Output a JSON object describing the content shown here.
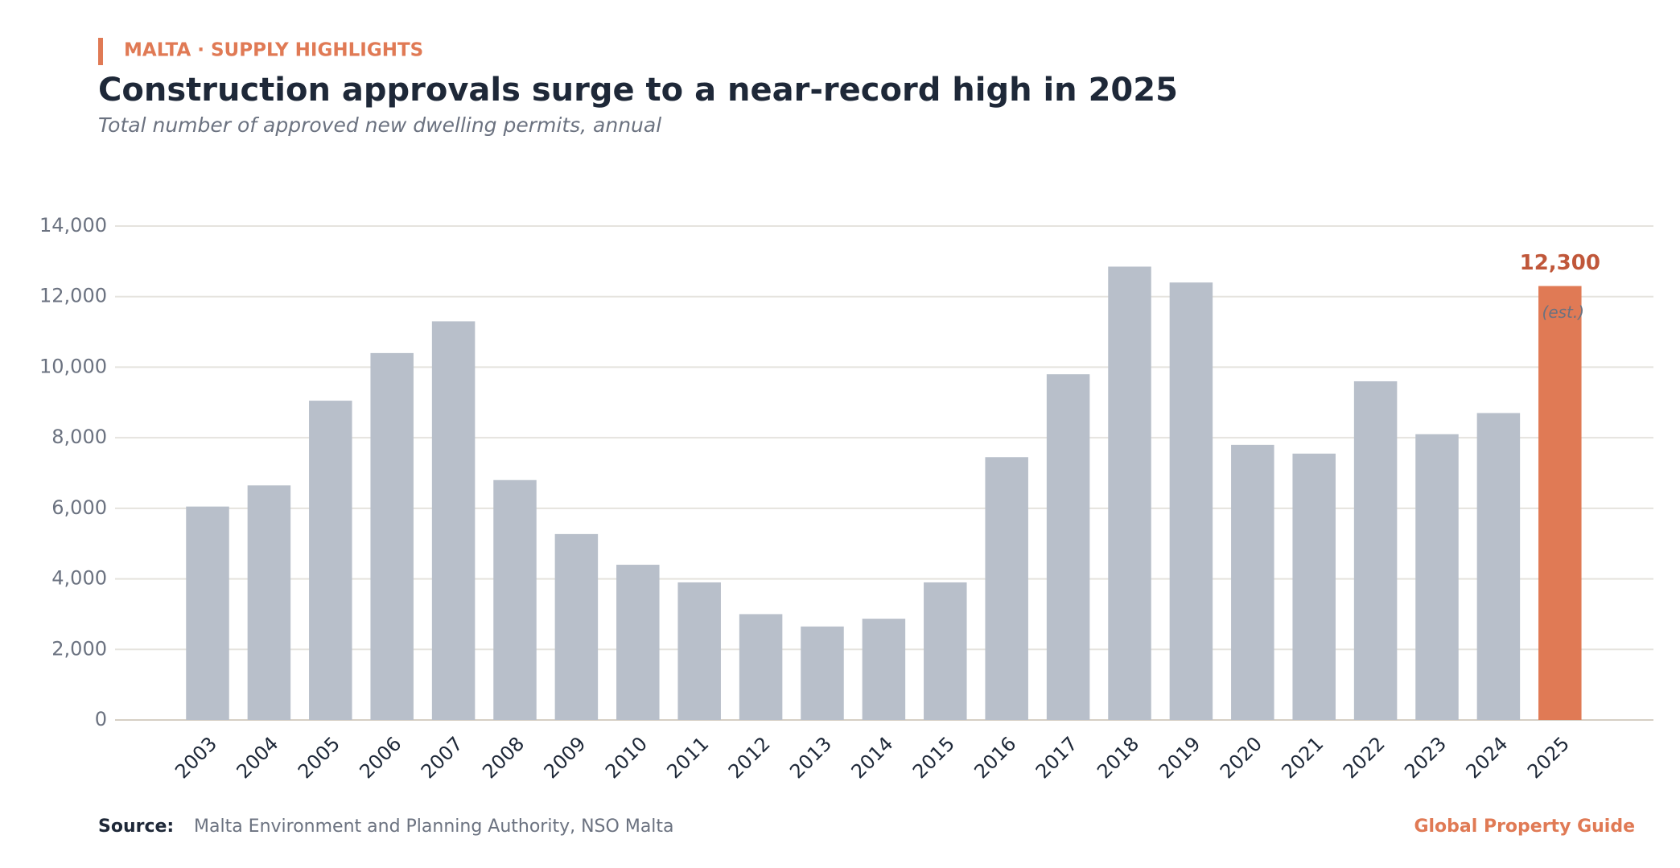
{
  "kicker": "MALTA · SUPPLY HIGHLIGHTS",
  "footer": {
    "source_label": "Source:",
    "source": "Malta Environment and Planning Authority, NSO Malta",
    "brand": "Global Property Guide"
  },
  "chart_data": {
    "type": "bar",
    "title": "Construction approvals surge to a near-record high in 2025",
    "subtitle": "Total number of approved new dwelling permits, annual",
    "categories": [
      "2003",
      "2004",
      "2005",
      "2006",
      "2007",
      "2008",
      "2009",
      "2010",
      "2011",
      "2012",
      "2013",
      "2014",
      "2015",
      "2016",
      "2017",
      "2018",
      "2019",
      "2020",
      "2021",
      "2022",
      "2023",
      "2024",
      "2025"
    ],
    "values": [
      6050,
      6650,
      9050,
      10400,
      11300,
      6800,
      5270,
      4400,
      3900,
      3000,
      2650,
      2870,
      3900,
      7450,
      9800,
      12850,
      12400,
      7800,
      7550,
      9600,
      8100,
      8700,
      12300
    ],
    "colors": [
      "#b8bfca",
      "#b8bfca",
      "#b8bfca",
      "#b8bfca",
      "#b8bfca",
      "#b8bfca",
      "#b8bfca",
      "#b8bfca",
      "#b8bfca",
      "#b8bfca",
      "#b8bfca",
      "#b8bfca",
      "#b8bfca",
      "#b8bfca",
      "#b8bfca",
      "#b8bfca",
      "#b8bfca",
      "#b8bfca",
      "#b8bfca",
      "#b8bfca",
      "#b8bfca",
      "#b8bfca",
      "#e07a55"
    ],
    "value_labels": [
      null,
      null,
      null,
      null,
      null,
      null,
      null,
      null,
      null,
      null,
      null,
      null,
      null,
      null,
      null,
      null,
      null,
      null,
      null,
      null,
      null,
      null,
      "12,300"
    ],
    "annotations": [
      null,
      null,
      null,
      null,
      null,
      null,
      null,
      null,
      null,
      null,
      null,
      null,
      null,
      null,
      null,
      null,
      null,
      null,
      null,
      null,
      null,
      null,
      "(est.)"
    ],
    "ylim": [
      0,
      14000
    ],
    "yticks": [
      0,
      {
        "value": 2000,
        "label": "2,000"
      },
      {
        "value": 4000,
        "label": "4,000"
      },
      {
        "value": 6000,
        "label": "6,000"
      },
      {
        "value": 8000,
        "label": "8,000"
      },
      {
        "value": 10000,
        "label": "10,000"
      },
      {
        "value": 12000,
        "label": "12,000"
      },
      {
        "value": 14000,
        "label": "14,000"
      }
    ],
    "grid": true
  }
}
